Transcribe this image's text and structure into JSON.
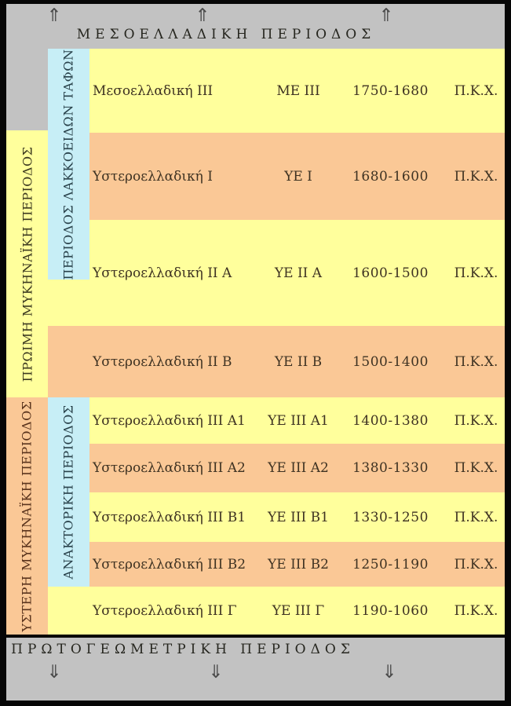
{
  "diagram": {
    "type": "chronology-table",
    "palette": {
      "gray": "#c2c2c2",
      "yellow": "#ffff9c",
      "orange": "#fac896",
      "blue": "#c7eef6",
      "border": "#060606"
    },
    "top_band": {
      "title": "ΜΕΣΟΕΛΛΑΔΙΚΗ ΠΕΡΙΟΔΟΣ",
      "arrow_glyph": "⇑"
    },
    "bottom_band": {
      "title": "ΠΡΩΤΟΓΕΩΜΕΤΡΙΚΗ ΠΕΡΙΟΔΟΣ",
      "arrow_glyph": "⇓"
    },
    "era_columns": {
      "early_mycenaean": {
        "label": "ΠΡΩΙΜΗ ΜΥΚΗΝΑΪΚΗ ΠΕΡΙΟΔΟΣ",
        "fill": "yellow"
      },
      "late_mycenaean": {
        "label": "ΥΣΤΕΡΗ ΜΥΚΗΝΑΪΚΗ ΠΕΡΙΟΔΟΣ",
        "fill": "orange"
      },
      "shaft_grave": {
        "label": "ΠΕΡΙΟΔΟΣ ΛΑΚΚΟΕΙΔΩΝ ΤΑΦΩΝ",
        "fill": "blue"
      },
      "palatial": {
        "label": "ΑΝΑΚΤΟΡΙΚΗ ΠΕΡΙΟΔΟΣ",
        "fill": "blue"
      }
    },
    "rows": [
      {
        "name": "Μεσοελλαδική III",
        "abbr": "ΜΕ ΙΙΙ",
        "dates": "1750-1680",
        "era": "Π.Κ.Χ.",
        "fill": "yellow"
      },
      {
        "name": "Υστεροελλαδική I",
        "abbr": "ΥΕ Ι",
        "dates": "1680-1600",
        "era": "Π.Κ.Χ.",
        "fill": "orange"
      },
      {
        "name": "Υστεροελλαδική II A",
        "abbr": "ΥΕ ΙΙ Α",
        "dates": "1600-1500",
        "era": "Π.Κ.Χ.",
        "fill": "yellow"
      },
      {
        "name": "Υστεροελλαδική II B",
        "abbr": "ΥΕ ΙΙ Β",
        "dates": "1500-1400",
        "era": "Π.Κ.Χ.",
        "fill": "orange"
      },
      {
        "name": "Υστεροελλαδική III A1",
        "abbr": "ΥΕ ΙΙΙ Α1",
        "dates": "1400-1380",
        "era": "Π.Κ.Χ.",
        "fill": "yellow"
      },
      {
        "name": "Υστεροελλαδική III A2",
        "abbr": "ΥΕ ΙΙΙ Α2",
        "dates": "1380-1330",
        "era": "Π.Κ.Χ.",
        "fill": "orange"
      },
      {
        "name": "Υστεροελλαδική III B1",
        "abbr": "ΥΕ ΙΙΙ Β1",
        "dates": "1330-1250",
        "era": "Π.Κ.Χ.",
        "fill": "yellow"
      },
      {
        "name": "Υστεροελλαδική III B2",
        "abbr": "ΥΕ ΙΙΙ Β2",
        "dates": "1250-1190",
        "era": "Π.Κ.Χ.",
        "fill": "orange"
      },
      {
        "name": "Υστεροελλαδική III Γ",
        "abbr": "ΥΕ ΙΙΙ Γ",
        "dates": "1190-1060",
        "era": "Π.Κ.Χ.",
        "fill": "yellow"
      }
    ]
  }
}
